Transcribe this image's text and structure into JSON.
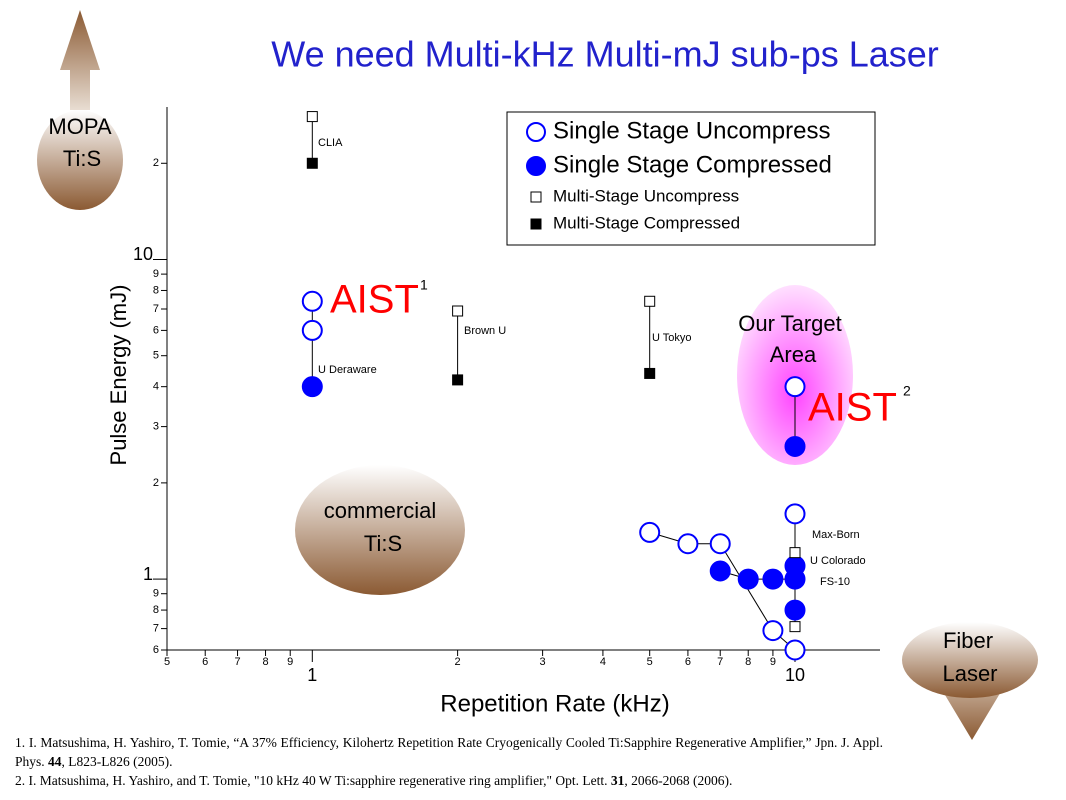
{
  "chart_data": {
    "type": "scatter",
    "title": "We need Multi-kHz Multi-mJ sub-ps Laser",
    "x_label": "Repetition Rate (kHz)",
    "y_label": "Pulse Energy (mJ)",
    "log_x": true,
    "log_y": true,
    "xlim": [
      0.5,
      15
    ],
    "ylim": [
      0.6,
      30
    ],
    "xticks": [
      {
        "value": 0.5,
        "label": "5"
      },
      {
        "value": 0.6,
        "label": "6"
      },
      {
        "value": 0.7,
        "label": "7"
      },
      {
        "value": 0.8,
        "label": "8"
      },
      {
        "value": 0.9,
        "label": "9"
      },
      1,
      2,
      3,
      4,
      5,
      6,
      7,
      8,
      9,
      10
    ],
    "yticks": [
      {
        "value": 0.6,
        "label": "6"
      },
      {
        "value": 0.7,
        "label": "7"
      },
      {
        "value": 0.8,
        "label": "8"
      },
      {
        "value": 0.9,
        "label": "9"
      },
      1,
      2,
      3,
      4,
      5,
      6,
      7,
      8,
      9,
      10,
      {
        "value": 20,
        "label": "2"
      }
    ],
    "series": [
      {
        "name": "Single Stage Uncompress",
        "color": "#0000ff",
        "marker": "circle",
        "filled": false,
        "x": [
          1,
          1,
          10,
          10,
          5,
          6,
          7,
          9,
          10
        ],
        "values": [
          7.4,
          6.0,
          4.0,
          1.6,
          1.4,
          1.29,
          1.29,
          0.69,
          0.6
        ]
      },
      {
        "name": "Single Stage Compressed",
        "color": "#0000ff",
        "marker": "circle",
        "filled": true,
        "x": [
          1,
          10,
          7,
          8,
          9,
          10,
          10,
          10
        ],
        "values": [
          4.0,
          2.6,
          1.06,
          1.0,
          1.0,
          1.1,
          1.0,
          0.8
        ]
      },
      {
        "name": "Multi-Stage Uncompress",
        "color": "#000000",
        "marker": "square",
        "filled": false,
        "x": [
          1,
          2,
          5,
          10,
          10
        ],
        "values": [
          28,
          6.9,
          7.4,
          1.21,
          0.71
        ]
      },
      {
        "name": "Multi-Stage Compressed",
        "color": "#000000",
        "marker": "square",
        "filled": true,
        "x": [
          1,
          2,
          5
        ],
        "values": [
          20,
          4.2,
          4.4
        ]
      }
    ],
    "annotations": [
      "CLIA",
      "U Deraware",
      "Brown U",
      "U Tokyo",
      "Max-Born",
      "U Colorado",
      "FS-10",
      "AIST",
      "1",
      "AIST",
      "2",
      "Our Target",
      "Area",
      "commercial",
      "Ti:S",
      "MOPA",
      "Ti:S",
      "Fiber",
      "Laser"
    ],
    "references": [
      [
        "1. I. Matsushima, H. Yashiro, T. Tomie, “A 37% Efficiency, Kilohertz Repetition Rate Cryogenically Cooled Ti:Sapphire Regenerative Amplifier,” Jpn. J. Appl. Phys. ",
        "44",
        ", L823-L826 (2005)."
      ],
      [
        "2. I. Matsushima, H. Yashiro, and T. Tomie, \"10 kHz 40 W Ti:sapphire regenerative ring amplifier,\" Opt. Lett. ",
        "31",
        ", 2066-2068 (2006)."
      ]
    ]
  }
}
